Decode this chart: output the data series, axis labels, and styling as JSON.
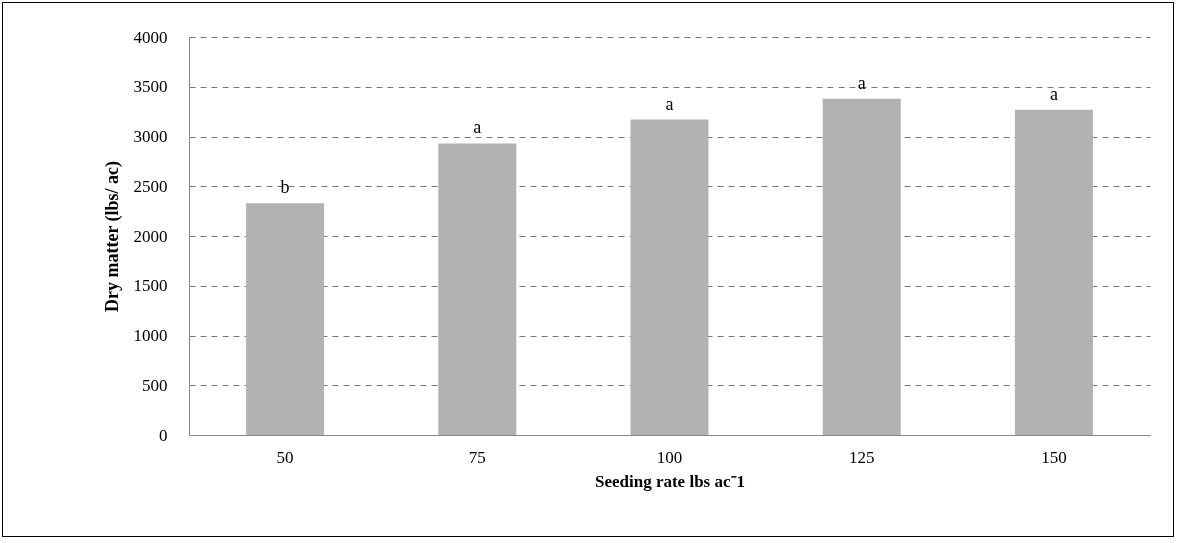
{
  "chart_data": {
    "type": "bar",
    "xlabel": "Seeding rate lbs ac⁻1",
    "ylabel": "Dry matter  (lbs/ ac)",
    "categories": [
      "50",
      "75",
      "100",
      "125",
      "150"
    ],
    "values": [
      2330,
      2930,
      3170,
      3380,
      3270
    ],
    "color": "#b2b2b2",
    "ylim": [
      0,
      4000
    ],
    "yticks": [
      0,
      500,
      1000,
      1500,
      2000,
      2500,
      3000,
      3500,
      4000
    ],
    "grid": "y",
    "annotations": [
      {
        "text": "b",
        "x": "50",
        "y": 2330
      },
      {
        "text": "a",
        "x": "75",
        "y": 2930
      },
      {
        "text": "a",
        "x": "100",
        "y": 3170
      },
      {
        "text": "a",
        "x": "125",
        "y": 3380
      },
      {
        "text": "a",
        "x": "150",
        "y": 3270
      }
    ]
  }
}
